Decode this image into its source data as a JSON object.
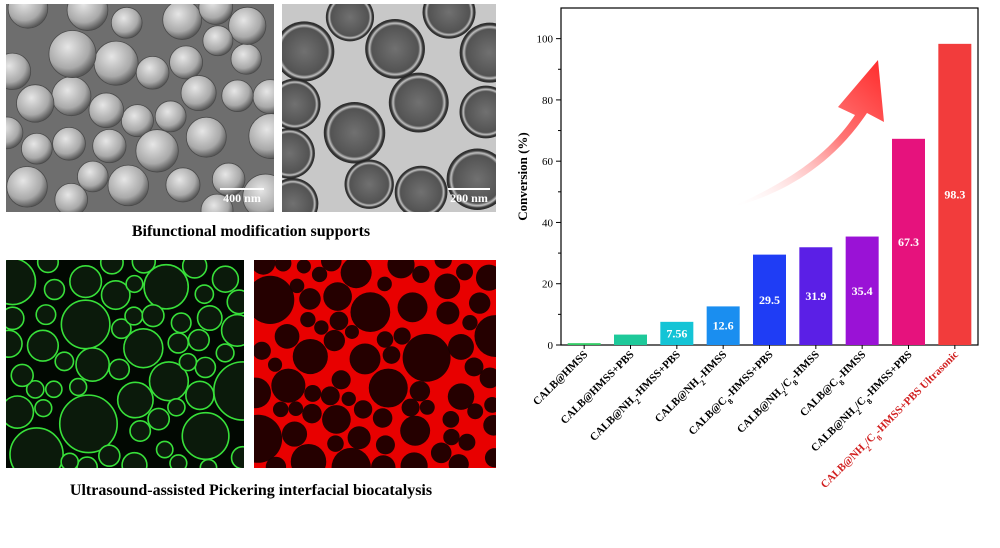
{
  "images": {
    "sem": {
      "scale_label": "400 nm"
    },
    "tem": {
      "scale_label": "200 nm"
    }
  },
  "captions": {
    "top": "Bifunctional modification supports",
    "bottom": "Ultrasound-assisted Pickering interfacial biocatalysis"
  },
  "chart_data": {
    "type": "bar",
    "ylabel": "Conversion (%)",
    "ylim": [
      0,
      110
    ],
    "yticks": [
      0,
      20,
      40,
      60,
      80,
      100
    ],
    "categories": [
      {
        "parts": [
          {
            "t": "CALB@HMSS"
          }
        ]
      },
      {
        "parts": [
          {
            "t": "CALB@HMSS+PBS"
          }
        ]
      },
      {
        "parts": [
          {
            "t": "CALB@NH"
          },
          {
            "t": "2",
            "sub": true
          },
          {
            "t": "-HMSS+PBS"
          }
        ]
      },
      {
        "parts": [
          {
            "t": "CALB@NH"
          },
          {
            "t": "2",
            "sub": true
          },
          {
            "t": "-HMSS"
          }
        ]
      },
      {
        "parts": [
          {
            "t": "CALB@C"
          },
          {
            "t": "8",
            "sub": true
          },
          {
            "t": "-HMSS+PBS"
          }
        ]
      },
      {
        "parts": [
          {
            "t": "CALB@NH"
          },
          {
            "t": "2",
            "sub": true
          },
          {
            "t": "/C"
          },
          {
            "t": "8",
            "sub": true
          },
          {
            "t": "-HMSS"
          }
        ]
      },
      {
        "parts": [
          {
            "t": "CALB@C"
          },
          {
            "t": "8",
            "sub": true
          },
          {
            "t": "-HMSS"
          }
        ]
      },
      {
        "parts": [
          {
            "t": "CALB@NH"
          },
          {
            "t": "2",
            "sub": true
          },
          {
            "t": "/C"
          },
          {
            "t": "8",
            "sub": true
          },
          {
            "t": "-HMSS+PBS"
          }
        ]
      },
      {
        "parts": [
          {
            "t": "CALB@NH"
          },
          {
            "t": "2",
            "sub": true
          },
          {
            "t": "/C"
          },
          {
            "t": "8",
            "sub": true
          },
          {
            "t": "-HMSS+PBS "
          },
          {
            "t": "Ultrasonic"
          }
        ],
        "highlight": true
      }
    ],
    "values": [
      0.6,
      3.4,
      7.56,
      12.6,
      29.5,
      31.9,
      35.4,
      67.3,
      98.3
    ],
    "value_labels": [
      "",
      "",
      "7.56",
      "12.6",
      "29.5",
      "31.9",
      "35.4",
      "67.3",
      "98.3"
    ],
    "colors": [
      "#33cc66",
      "#1ec99a",
      "#14c4d6",
      "#1a8ef0",
      "#1f3df5",
      "#5b1fe6",
      "#9a12d6",
      "#e6127d",
      "#f23c3c"
    ],
    "highlight_color": "#d11f1f",
    "arrow_color": "#ff2a2a"
  }
}
